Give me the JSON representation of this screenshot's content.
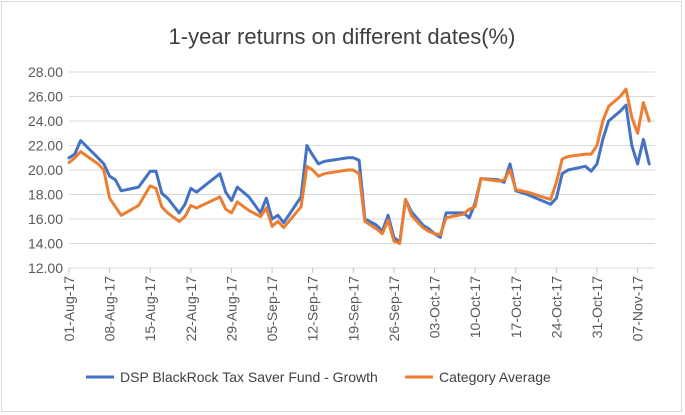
{
  "chart_data": {
    "type": "line",
    "title": "1-year returns on different dates(%)",
    "xlabel": "",
    "ylabel": "",
    "ylim": [
      12,
      28
    ],
    "yticks": [
      "12.00",
      "14.00",
      "16.00",
      "18.00",
      "20.00",
      "22.00",
      "24.00",
      "26.00",
      "28.00"
    ],
    "xticks": [
      "01-Aug-17",
      "08-Aug-17",
      "15-Aug-17",
      "22-Aug-17",
      "29-Aug-17",
      "05-Sep-17",
      "12-Sep-17",
      "19-Sep-17",
      "26-Sep-17",
      "03-Oct-17",
      "10-Oct-17",
      "17-Oct-17",
      "24-Oct-17",
      "31-Oct-17",
      "07-Nov-17"
    ],
    "x_start": "01-Aug-17",
    "x_end": "10-Nov-17",
    "grid": true,
    "legend_position": "bottom",
    "series": [
      {
        "name": "DSP BlackRock Tax Saver Fund - Growth",
        "color": "#4472c4",
        "points": [
          [
            "01-Aug-17",
            21.0
          ],
          [
            "02-Aug-17",
            21.3
          ],
          [
            "03-Aug-17",
            22.4
          ],
          [
            "06-Aug-17",
            21.0
          ],
          [
            "07-Aug-17",
            20.5
          ],
          [
            "08-Aug-17",
            19.5
          ],
          [
            "09-Aug-17",
            19.2
          ],
          [
            "10-Aug-17",
            18.3
          ],
          [
            "13-Aug-17",
            18.6
          ],
          [
            "15-Aug-17",
            19.9
          ],
          [
            "16-Aug-17",
            19.9
          ],
          [
            "17-Aug-17",
            18.1
          ],
          [
            "18-Aug-17",
            17.7
          ],
          [
            "20-Aug-17",
            16.5
          ],
          [
            "21-Aug-17",
            17.2
          ],
          [
            "22-Aug-17",
            18.5
          ],
          [
            "23-Aug-17",
            18.2
          ],
          [
            "27-Aug-17",
            19.7
          ],
          [
            "28-Aug-17",
            18.2
          ],
          [
            "29-Aug-17",
            17.5
          ],
          [
            "30-Aug-17",
            18.6
          ],
          [
            "01-Sep-17",
            17.8
          ],
          [
            "03-Sep-17",
            16.5
          ],
          [
            "04-Sep-17",
            17.7
          ],
          [
            "05-Sep-17",
            16.0
          ],
          [
            "06-Sep-17",
            16.3
          ],
          [
            "07-Sep-17",
            15.7
          ],
          [
            "10-Sep-17",
            17.8
          ],
          [
            "11-Sep-17",
            22.0
          ],
          [
            "12-Sep-17",
            21.2
          ],
          [
            "13-Sep-17",
            20.5
          ],
          [
            "14-Sep-17",
            20.7
          ],
          [
            "18-Sep-17",
            21.0
          ],
          [
            "19-Sep-17",
            21.0
          ],
          [
            "20-Sep-17",
            20.8
          ],
          [
            "21-Sep-17",
            16.0
          ],
          [
            "23-Sep-17",
            15.5
          ],
          [
            "24-Sep-17",
            15.0
          ],
          [
            "25-Sep-17",
            16.3
          ],
          [
            "26-Sep-17",
            14.5
          ],
          [
            "27-Sep-17",
            14.1
          ],
          [
            "28-Sep-17",
            17.6
          ],
          [
            "29-Sep-17",
            16.6
          ],
          [
            "01-Oct-17",
            15.5
          ],
          [
            "02-Oct-17",
            15.2
          ],
          [
            "03-Oct-17",
            14.8
          ],
          [
            "04-Oct-17",
            14.5
          ],
          [
            "05-Oct-17",
            16.5
          ],
          [
            "08-Oct-17",
            16.5
          ],
          [
            "09-Oct-17",
            16.1
          ],
          [
            "10-Oct-17",
            17.3
          ],
          [
            "11-Oct-17",
            19.3
          ],
          [
            "14-Oct-17",
            19.2
          ],
          [
            "15-Oct-17",
            19.0
          ],
          [
            "16-Oct-17",
            20.5
          ],
          [
            "17-Oct-17",
            18.3
          ],
          [
            "19-Oct-17",
            18.0
          ],
          [
            "23-Oct-17",
            17.2
          ],
          [
            "24-Oct-17",
            17.7
          ],
          [
            "25-Oct-17",
            19.7
          ],
          [
            "26-Oct-17",
            20.0
          ],
          [
            "29-Oct-17",
            20.3
          ],
          [
            "30-Oct-17",
            19.9
          ],
          [
            "31-Oct-17",
            20.5
          ],
          [
            "01-Nov-17",
            22.5
          ],
          [
            "02-Nov-17",
            24.0
          ],
          [
            "04-Nov-17",
            24.8
          ],
          [
            "05-Nov-17",
            25.3
          ],
          [
            "06-Nov-17",
            22.0
          ],
          [
            "07-Nov-17",
            20.5
          ],
          [
            "08-Nov-17",
            22.5
          ],
          [
            "09-Nov-17",
            20.5
          ]
        ]
      },
      {
        "name": "Category Average",
        "color": "#ed7d31",
        "points": [
          [
            "01-Aug-17",
            20.6
          ],
          [
            "02-Aug-17",
            21.0
          ],
          [
            "03-Aug-17",
            21.5
          ],
          [
            "06-Aug-17",
            20.5
          ],
          [
            "07-Aug-17",
            20.0
          ],
          [
            "08-Aug-17",
            17.7
          ],
          [
            "09-Aug-17",
            17.0
          ],
          [
            "10-Aug-17",
            16.3
          ],
          [
            "13-Aug-17",
            17.1
          ],
          [
            "15-Aug-17",
            18.7
          ],
          [
            "16-Aug-17",
            18.5
          ],
          [
            "17-Aug-17",
            17.0
          ],
          [
            "18-Aug-17",
            16.5
          ],
          [
            "20-Aug-17",
            15.8
          ],
          [
            "21-Aug-17",
            16.2
          ],
          [
            "22-Aug-17",
            17.1
          ],
          [
            "23-Aug-17",
            16.9
          ],
          [
            "27-Aug-17",
            17.8
          ],
          [
            "28-Aug-17",
            16.8
          ],
          [
            "29-Aug-17",
            16.5
          ],
          [
            "30-Aug-17",
            17.4
          ],
          [
            "01-Sep-17",
            16.7
          ],
          [
            "03-Sep-17",
            16.2
          ],
          [
            "04-Sep-17",
            16.9
          ],
          [
            "05-Sep-17",
            15.4
          ],
          [
            "06-Sep-17",
            15.8
          ],
          [
            "07-Sep-17",
            15.3
          ],
          [
            "10-Sep-17",
            17.0
          ],
          [
            "11-Sep-17",
            20.3
          ],
          [
            "12-Sep-17",
            20.0
          ],
          [
            "13-Sep-17",
            19.5
          ],
          [
            "14-Sep-17",
            19.7
          ],
          [
            "18-Sep-17",
            20.0
          ],
          [
            "19-Sep-17",
            20.0
          ],
          [
            "20-Sep-17",
            19.7
          ],
          [
            "21-Sep-17",
            15.8
          ],
          [
            "23-Sep-17",
            15.2
          ],
          [
            "24-Sep-17",
            14.8
          ],
          [
            "25-Sep-17",
            15.9
          ],
          [
            "26-Sep-17",
            14.2
          ],
          [
            "27-Sep-17",
            14.0
          ],
          [
            "28-Sep-17",
            17.6
          ],
          [
            "29-Sep-17",
            16.3
          ],
          [
            "01-Oct-17",
            15.3
          ],
          [
            "02-Oct-17",
            15.0
          ],
          [
            "03-Oct-17",
            14.8
          ],
          [
            "04-Oct-17",
            14.7
          ],
          [
            "05-Oct-17",
            16.1
          ],
          [
            "08-Oct-17",
            16.4
          ],
          [
            "09-Oct-17",
            16.8
          ],
          [
            "10-Oct-17",
            17.0
          ],
          [
            "11-Oct-17",
            19.3
          ],
          [
            "14-Oct-17",
            19.1
          ],
          [
            "15-Oct-17",
            19.2
          ],
          [
            "16-Oct-17",
            20.0
          ],
          [
            "17-Oct-17",
            18.4
          ],
          [
            "19-Oct-17",
            18.2
          ],
          [
            "23-Oct-17",
            17.6
          ],
          [
            "24-Oct-17",
            19.0
          ],
          [
            "25-Oct-17",
            20.9
          ],
          [
            "26-Oct-17",
            21.1
          ],
          [
            "29-Oct-17",
            21.3
          ],
          [
            "30-Oct-17",
            21.3
          ],
          [
            "31-Oct-17",
            22.0
          ],
          [
            "01-Nov-17",
            24.0
          ],
          [
            "02-Nov-17",
            25.2
          ],
          [
            "04-Nov-17",
            26.0
          ],
          [
            "05-Nov-17",
            26.6
          ],
          [
            "06-Nov-17",
            24.3
          ],
          [
            "07-Nov-17",
            23.0
          ],
          [
            "08-Nov-17",
            25.5
          ],
          [
            "09-Nov-17",
            24.0
          ]
        ]
      }
    ]
  }
}
